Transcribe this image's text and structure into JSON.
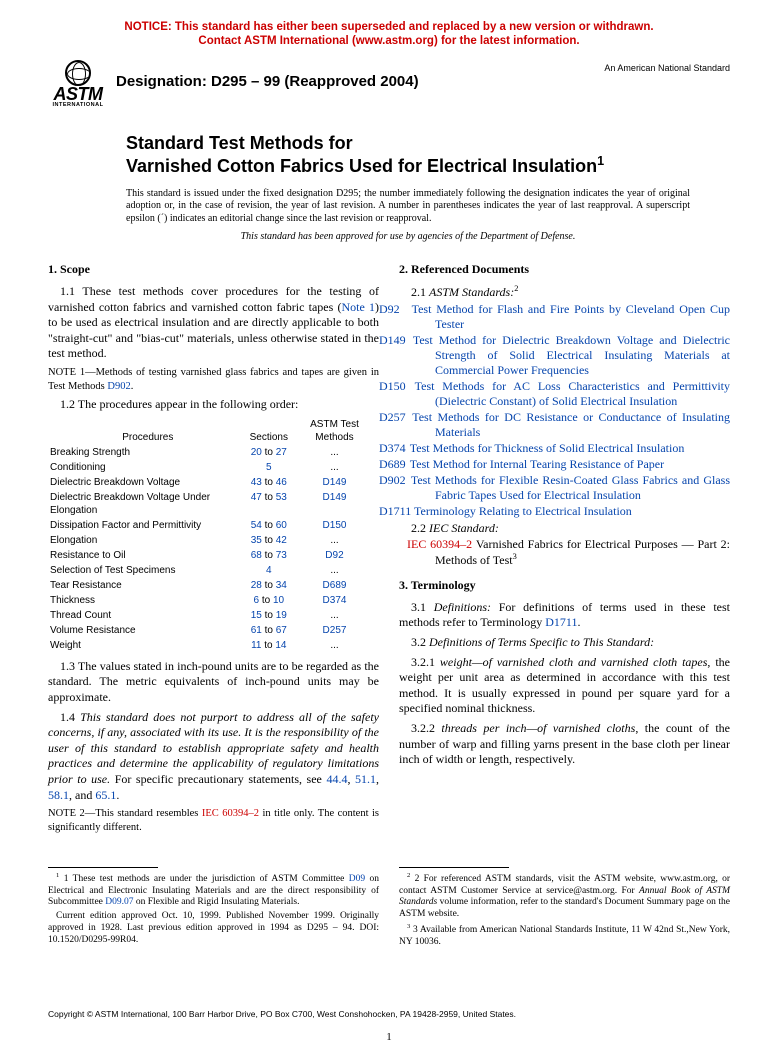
{
  "colors": {
    "notice": "#cc0000",
    "link": "#0645ad",
    "redlink": "#cc0000",
    "text": "#000000",
    "background": "#ffffff"
  },
  "notice": {
    "line1": "NOTICE: This standard has either been superseded and replaced by a new version or withdrawn.",
    "line2": "Contact ASTM International (www.astm.org) for the latest information."
  },
  "logo": {
    "text": "ASTM",
    "sub": "INTERNATIONAL"
  },
  "designation_label": "Designation: D295 – 99 (Reapproved 2004)",
  "an_std": "An American National Standard",
  "title": {
    "line1": "Standard Test Methods for",
    "line2": "Varnished Cotton Fabrics Used for Electrical Insulation",
    "sup": "1"
  },
  "issuance": "This standard is issued under the fixed designation D295; the number immediately following the designation indicates the year of original adoption or, in the case of revision, the year of last revision. A number in parentheses indicates the year of last reapproval. A superscript epsilon (´) indicates an editorial change since the last revision or reapproval.",
  "dod": "This standard has been approved for use by agencies of the Department of Defense.",
  "scope": {
    "head": "1. Scope",
    "p1a": "1.1 These test methods cover procedures for the testing of varnished cotton fabrics and varnished cotton fabric tapes (",
    "p1link": "Note 1",
    "p1b": ") to be used as electrical insulation and are directly applicable to both \"straight-cut\" and \"bias-cut\" materials, unless otherwise stated in the test method.",
    "note1a": "NOTE 1—Methods of testing varnished glass fabrics and tapes are given in Test Methods ",
    "note1link": "D902",
    "note1b": ".",
    "p12": "1.2 The procedures appear in the following order:",
    "p13": "1.3 The values stated in inch-pound units are to be regarded as the standard. The metric equivalents of inch-pound units may be approximate.",
    "p14a": "1.4 ",
    "p14it": "This standard does not purport to address all of the safety concerns, if any, associated with its use. It is the responsibility of the user of this standard to establish appropriate safety and health practices and determine the applicability of regulatory limitations prior to use.",
    "p14b": " For specific precautionary statements, see ",
    "p14links": [
      "44.4",
      "51.1",
      "58.1",
      "65.1"
    ],
    "p14c": ".",
    "note2a": "NOTE 2—This standard resembles ",
    "note2link": "IEC 60394–2",
    "note2b": " in title only. The content is significantly different."
  },
  "proc_table": {
    "headers": [
      "Procedures",
      "Sections",
      "ASTM Test Methods"
    ],
    "rows": [
      {
        "name": "Breaking Strength",
        "sec": [
          "20",
          "27"
        ],
        "m": "..."
      },
      {
        "name": "Conditioning",
        "sec": [
          "5"
        ],
        "m": "..."
      },
      {
        "name": "Dielectric Breakdown Voltage",
        "sec": [
          "43",
          "46"
        ],
        "m": "D149",
        "link": true
      },
      {
        "name": "Dielectric Breakdown Voltage Under Elongation",
        "sec": [
          "47",
          "53"
        ],
        "m": "D149",
        "link": true
      },
      {
        "name": "Dissipation Factor and Permittivity",
        "sec": [
          "54",
          "60"
        ],
        "m": "D150",
        "link": true
      },
      {
        "name": "Elongation",
        "sec": [
          "35",
          "42"
        ],
        "m": "..."
      },
      {
        "name": "Resistance to Oil",
        "sec": [
          "68",
          "73"
        ],
        "m": "D92",
        "link": true
      },
      {
        "name": "Selection of Test Specimens",
        "sec": [
          "4"
        ],
        "m": "..."
      },
      {
        "name": "Tear Resistance",
        "sec": [
          "28",
          "34"
        ],
        "m": "D689",
        "link": true
      },
      {
        "name": "Thickness",
        "sec": [
          "6",
          "10"
        ],
        "m": "D374",
        "link": true
      },
      {
        "name": "Thread Count",
        "sec": [
          "15",
          "19"
        ],
        "m": "..."
      },
      {
        "name": "Volume Resistance",
        "sec": [
          "61",
          "67"
        ],
        "m": "D257",
        "link": true
      },
      {
        "name": "Weight",
        "sec": [
          "11",
          "14"
        ],
        "m": "..."
      }
    ]
  },
  "refdocs": {
    "head": "2. Referenced Documents",
    "sub1a": "2.1 ",
    "sub1it": "ASTM Standards:",
    "sub1sup": "2",
    "items": [
      {
        "code": "D92",
        "title": "Test Method for Flash and Fire Points by Cleveland Open Cup Tester"
      },
      {
        "code": "D149",
        "title": "Test Method for Dielectric Breakdown Voltage and Dielectric Strength of Solid Electrical Insulating Materials at Commercial Power Frequencies"
      },
      {
        "code": "D150",
        "title": "Test Methods for AC Loss Characteristics and Permittivity (Dielectric Constant) of Solid Electrical Insulation"
      },
      {
        "code": "D257",
        "title": "Test Methods for DC Resistance or Conductance of Insulating Materials"
      },
      {
        "code": "D374",
        "title": "Test Methods for Thickness of Solid Electrical Insulation"
      },
      {
        "code": "D689",
        "title": "Test Method for Internal Tearing Resistance of Paper"
      },
      {
        "code": "D902",
        "title": "Test Methods for Flexible Resin-Coated Glass Fabrics and Glass Fabric Tapes Used for Electrical Insulation"
      },
      {
        "code": "D1711",
        "title": "Terminology Relating to Electrical Insulation"
      }
    ],
    "sub2a": "2.2 ",
    "sub2it": "IEC Standard:",
    "iec_code": "IEC 60394–2",
    "iec_title_a": "Varnished Fabrics for Electrical Purposes — Part 2: Methods of Test",
    "iec_sup": "3"
  },
  "terminology": {
    "head": "3. Terminology",
    "p31a": "3.1 ",
    "p31it": "Definitions:",
    "p31b": " For definitions of terms used in these test methods refer to Terminology ",
    "p31link": "D1711",
    "p31c": ".",
    "p32a": "3.2 ",
    "p32it": "Definitions of Terms Specific to This Standard:",
    "p321a": "3.2.1 ",
    "p321term": "weight—of varnished cloth and varnished cloth tapes",
    "p321b": ", the weight per unit area as determined in accordance with this test method. It is usually expressed in pound per square yard for a specified nominal thickness.",
    "p322a": "3.2.2 ",
    "p322term": "threads per inch—of varnished cloths",
    "p322b": ", the count of the number of warp and filling yarns present in the base cloth per linear inch of width or length, respectively."
  },
  "footnotes": {
    "left": {
      "p1a": "1 These test methods are under the jurisdiction of ASTM Committee ",
      "p1link1": "D09",
      "p1b": " on Electrical and Electronic Insulating Materials and are the direct responsibility of Subcommittee ",
      "p1link2": "D09.07",
      "p1c": " on Flexible and Rigid Insulating Materials.",
      "p2": "Current edition approved Oct. 10, 1999. Published November 1999. Originally approved in 1928. Last previous edition approved in 1994 as D295 – 94. DOI: 10.1520/D0295-99R04."
    },
    "right": {
      "p1a": "2 For referenced ASTM standards, visit the ASTM website, www.astm.org, or contact ASTM Customer Service at service@astm.org. For ",
      "p1it": "Annual Book of ASTM Standards",
      "p1b": " volume information, refer to the standard's Document Summary page on the ASTM website.",
      "p2": "3 Available from American National Standards Institute, 11 W 42nd St.,New York, NY 10036."
    }
  },
  "copyright": "Copyright © ASTM International, 100 Barr Harbor Drive, PO Box C700, West Conshohocken, PA 19428-2959, United States.",
  "page_num": "1"
}
